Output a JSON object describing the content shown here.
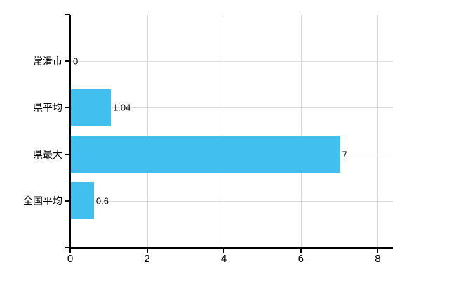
{
  "chart_data": {
    "type": "bar",
    "orientation": "horizontal",
    "title": "",
    "xlabel": "",
    "ylabel": "",
    "categories": [
      "常滑市",
      "県平均",
      "県最大",
      "全国平均"
    ],
    "values": [
      0,
      1.04,
      7,
      0.6
    ],
    "value_labels": [
      "0",
      "1.04",
      "7",
      "0.6"
    ],
    "x_tick_labels": [
      "0",
      "2",
      "4",
      "6",
      "8"
    ],
    "x_tick_values": [
      0,
      2,
      4,
      6,
      8
    ],
    "xlim": [
      0,
      8.4
    ],
    "grid": true,
    "legend": false,
    "colors": {
      "bar": "#41bfef",
      "grid": "#d9d9d9",
      "axis": "#000000",
      "text": "#000000",
      "background": "#ffffff"
    }
  }
}
